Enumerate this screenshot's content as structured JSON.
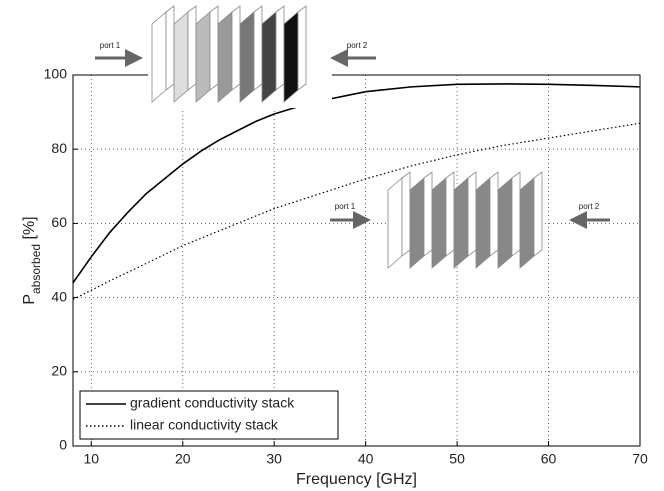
{
  "chart_data": {
    "type": "line",
    "xlabel": "Frequency [GHz]",
    "ylabel": {
      "main": "P",
      "sub": "absorbed",
      "unit": "[%]"
    },
    "xlim": [
      8,
      70
    ],
    "xticks": [
      10,
      20,
      30,
      40,
      50,
      60,
      70
    ],
    "ylim": [
      0,
      100
    ],
    "yticks": [
      0,
      20,
      40,
      60,
      80,
      100
    ],
    "grid": true,
    "legend": "lower left",
    "annotations": [
      "port 1",
      "port 2",
      "port 1",
      "port 2"
    ],
    "series": [
      {
        "name": "gradient conductivity stack",
        "color": "#000000",
        "linestyle": "solid",
        "x": [
          8,
          10,
          12,
          14,
          16,
          18,
          20,
          22,
          24,
          26,
          28,
          30,
          32,
          35,
          40,
          45,
          50,
          55,
          60,
          65,
          70
        ],
        "values": [
          44,
          51,
          57.5,
          63,
          68,
          72,
          76,
          79.5,
          82.5,
          85,
          87.5,
          89.5,
          91,
          93,
          95.5,
          96.8,
          97.5,
          97.6,
          97.5,
          97.2,
          96.8
        ]
      },
      {
        "name": "linear conductivity stack",
        "color": "#000000",
        "linestyle": "dotted",
        "x": [
          8,
          10,
          12,
          15,
          20,
          25,
          30,
          35,
          40,
          45,
          50,
          55,
          60,
          65,
          70
        ],
        "values": [
          39.5,
          42,
          44.5,
          48,
          54,
          59,
          64,
          68,
          72,
          75.5,
          78.5,
          81,
          83,
          85,
          87
        ]
      }
    ]
  }
}
